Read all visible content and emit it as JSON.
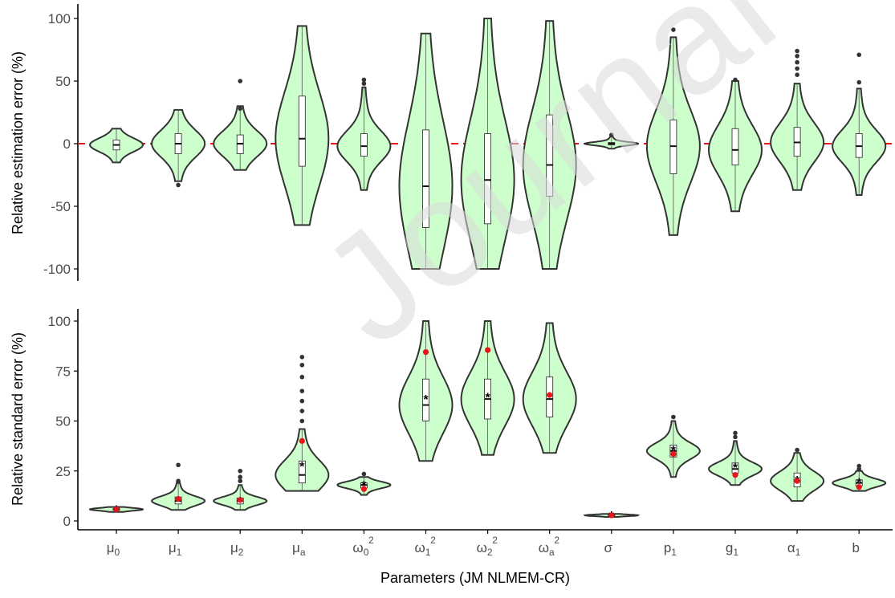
{
  "chart_data": [
    {
      "type": "violin",
      "panel": "top",
      "ylabel": "Relative estimation error (%)",
      "ylim": [
        -105,
        105
      ],
      "yticks": [
        -100,
        -50,
        0,
        50,
        100
      ],
      "ytick_labels": [
        "-100",
        "-50",
        "0",
        "50",
        "100"
      ],
      "reference_line": {
        "y": 0,
        "color": "#e8161a",
        "style": "dashed"
      },
      "categories": [
        "μ0",
        "μ1",
        "μ2",
        "μa",
        "ω0²",
        "ω1²",
        "ω2²",
        "ωa²",
        "σ",
        "p1",
        "g1",
        "α1",
        "b"
      ],
      "violins": [
        {
          "min": -15,
          "max": 12,
          "q1": -5,
          "median": -1,
          "q3": 3,
          "outliers": []
        },
        {
          "min": -30,
          "max": 27,
          "q1": -8,
          "median": 0,
          "q3": 8,
          "outliers": [
            -33
          ]
        },
        {
          "min": -21,
          "max": 30,
          "q1": -8,
          "median": 0,
          "q3": 7,
          "outliers": [
            50,
            28
          ]
        },
        {
          "min": -65,
          "max": 94,
          "q1": -18,
          "median": 4,
          "q3": 38,
          "outliers": []
        },
        {
          "min": -37,
          "max": 45,
          "q1": -10,
          "median": -2,
          "q3": 8,
          "outliers": [
            51,
            48
          ]
        },
        {
          "min": -100,
          "max": 88,
          "q1": -67,
          "median": -34,
          "q3": 11,
          "outliers": []
        },
        {
          "min": -100,
          "max": 100,
          "q1": -64,
          "median": -29,
          "q3": 8,
          "outliers": []
        },
        {
          "min": -100,
          "max": 98,
          "q1": -42,
          "median": -17,
          "q3": 23,
          "outliers": []
        },
        {
          "min": -4,
          "max": 6,
          "q1": -1,
          "median": 0,
          "q3": 1,
          "outliers": [
            7
          ]
        },
        {
          "min": -73,
          "max": 85,
          "q1": -24,
          "median": -2,
          "q3": 19,
          "outliers": [
            91
          ]
        },
        {
          "min": -54,
          "max": 50,
          "q1": -17,
          "median": -5,
          "q3": 12,
          "outliers": [
            51
          ]
        },
        {
          "min": -37,
          "max": 48,
          "q1": -10,
          "median": 1,
          "q3": 13,
          "outliers": [
            74,
            70,
            65,
            60,
            55
          ]
        },
        {
          "min": -41,
          "max": 44,
          "q1": -11,
          "median": -2,
          "q3": 8,
          "outliers": [
            71,
            49
          ]
        }
      ]
    },
    {
      "type": "violin",
      "panel": "bottom",
      "ylabel": "Relative standard error (%)",
      "xlabel": "Parameters (JM NLMEM-CR)",
      "ylim": [
        -2,
        104
      ],
      "yticks": [
        0,
        25,
        50,
        75,
        100
      ],
      "ytick_labels": [
        "0",
        "25",
        "50",
        "75",
        "100"
      ],
      "categories": [
        "μ0",
        "μ1",
        "μ2",
        "μa",
        "ω0²",
        "ω1²",
        "ω2²",
        "ωa²",
        "σ",
        "p1",
        "g1",
        "α1",
        "b"
      ],
      "violins": [
        {
          "min": 4.5,
          "max": 7,
          "q1": 5.3,
          "median": 5.8,
          "q3": 6.3,
          "mean": 5.8,
          "reference": 5.8,
          "outliers": []
        },
        {
          "min": 5.5,
          "max": 19,
          "q1": 8.5,
          "median": 10,
          "q3": 12,
          "mean": 10.5,
          "reference": 11,
          "outliers": [
            28,
            20
          ]
        },
        {
          "min": 5.5,
          "max": 18,
          "q1": 8.5,
          "median": 10,
          "q3": 11.5,
          "mean": 10,
          "reference": 10.5,
          "outliers": [
            25,
            22,
            20
          ]
        },
        {
          "min": 15,
          "max": 46,
          "q1": 19,
          "median": 23,
          "q3": 30,
          "mean": 27.5,
          "reference": 40,
          "outliers": [
            82,
            78,
            72,
            65,
            60,
            55,
            50
          ]
        },
        {
          "min": 13,
          "max": 22,
          "q1": 16.5,
          "median": 18,
          "q3": 19,
          "mean": 18,
          "reference": 16,
          "outliers": [
            23.5
          ]
        },
        {
          "min": 30,
          "max": 100,
          "q1": 50,
          "median": 58,
          "q3": 71,
          "mean": 61,
          "reference": 84.5,
          "outliers": []
        },
        {
          "min": 33,
          "max": 100,
          "q1": 51,
          "median": 61,
          "q3": 71,
          "mean": 62,
          "reference": 85.5,
          "outliers": []
        },
        {
          "min": 34,
          "max": 99,
          "q1": 52,
          "median": 61,
          "q3": 72,
          "mean": 62.5,
          "reference": 63,
          "outliers": []
        },
        {
          "min": 2,
          "max": 3.5,
          "q1": 2.5,
          "median": 2.8,
          "q3": 3.1,
          "mean": 2.8,
          "reference": 2.8,
          "outliers": []
        },
        {
          "min": 22,
          "max": 50,
          "q1": 32,
          "median": 35,
          "q3": 38,
          "mean": 35.5,
          "reference": 33.5,
          "outliers": [
            52
          ]
        },
        {
          "min": 18,
          "max": 40,
          "q1": 24,
          "median": 26,
          "q3": 29,
          "mean": 27,
          "reference": 23,
          "outliers": [
            44,
            42
          ]
        },
        {
          "min": 10,
          "max": 34,
          "q1": 17,
          "median": 20,
          "q3": 24,
          "mean": 20.5,
          "reference": 20,
          "outliers": [
            35.5
          ]
        },
        {
          "min": 15,
          "max": 25,
          "q1": 17.5,
          "median": 19,
          "q3": 20.5,
          "mean": 19.5,
          "reference": 17,
          "outliers": [
            27.5,
            26
          ]
        }
      ]
    }
  ],
  "watermark": "Journal Pre-proof",
  "colors": {
    "violin_fill": "#ccffcc",
    "violin_stroke": "#333333",
    "box_fill": "#ffffff",
    "reference_line": "#e8161a",
    "reference_point": "#e8161a",
    "mean_marker": "#000000",
    "outlier": "#333333",
    "axis": "#000000",
    "tick_label": "#4d4d4d"
  }
}
